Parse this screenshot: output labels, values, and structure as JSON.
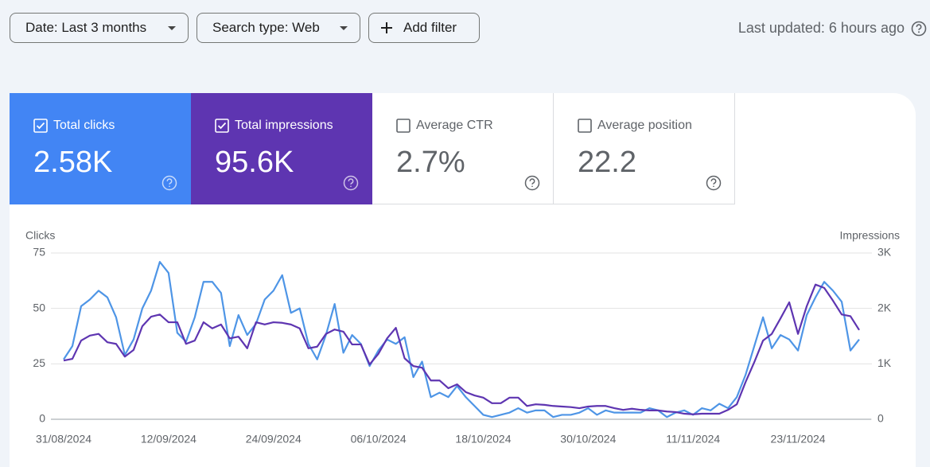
{
  "filters": [
    "Date: Last 3 months",
    "Search type: Web",
    "Add filter"
  ],
  "last_updated": "Last updated: 6 hours ago",
  "metrics": [
    {
      "label": "Total clicks",
      "value": "2.58K",
      "checked": true
    },
    {
      "label": "Total impressions",
      "value": "95.6K",
      "checked": true
    },
    {
      "label": "Average CTR",
      "value": "2.7%",
      "checked": false
    },
    {
      "label": "Average position",
      "value": "22.2",
      "checked": false
    }
  ],
  "chart_data": {
    "type": "line",
    "y_label": "Clicks",
    "y2_label": "Impressions",
    "categories": [
      "31/08/2024",
      null,
      null,
      null,
      null,
      null,
      null,
      null,
      null,
      null,
      null,
      null,
      "12/09/2024",
      null,
      null,
      null,
      null,
      null,
      null,
      null,
      null,
      null,
      null,
      null,
      "24/09/2024",
      null,
      null,
      null,
      null,
      null,
      null,
      null,
      null,
      null,
      null,
      null,
      "06/10/2024",
      null,
      null,
      null,
      null,
      null,
      null,
      null,
      null,
      null,
      null,
      null,
      "18/10/2024",
      null,
      null,
      null,
      null,
      null,
      null,
      null,
      null,
      null,
      null,
      null,
      "30/10/2024",
      null,
      null,
      null,
      null,
      null,
      null,
      null,
      null,
      null,
      null,
      null,
      "11/11/2024",
      null,
      null,
      null,
      null,
      null,
      null,
      null,
      null,
      null,
      null,
      null,
      "23/11/2024",
      null,
      null,
      null,
      null,
      null,
      null,
      null
    ],
    "series": [
      {
        "color": "#4e95e6",
        "values": [
          27,
          33,
          51,
          54,
          58,
          55,
          46,
          29,
          36,
          50,
          58,
          71,
          66,
          39,
          35,
          46,
          62,
          62,
          57,
          33,
          47,
          38,
          43,
          54,
          58,
          65,
          48,
          50,
          34,
          27,
          38,
          52,
          30,
          38,
          34,
          24,
          31,
          36,
          34,
          37,
          19,
          26,
          10,
          12,
          10,
          15,
          10,
          6,
          2,
          1,
          2,
          3,
          5,
          3,
          4,
          4,
          1,
          2,
          2,
          3,
          5,
          2,
          4,
          3,
          3,
          3,
          3,
          5,
          4,
          1,
          3,
          4,
          2,
          5,
          4,
          7,
          5,
          10,
          20,
          33,
          46,
          32,
          38,
          36,
          31,
          47,
          55,
          62,
          58,
          53,
          31,
          36
        ]
      },
      {
        "color": "#5e35b1",
        "axis": "y2",
        "values": [
          1060,
          1090,
          1420,
          1510,
          1540,
          1390,
          1360,
          1130,
          1250,
          1680,
          1850,
          1890,
          1750,
          1750,
          1360,
          1420,
          1750,
          1640,
          1710,
          1460,
          1490,
          1280,
          1750,
          1710,
          1750,
          1740,
          1710,
          1640,
          1280,
          1310,
          1540,
          1620,
          1580,
          1350,
          1350,
          990,
          1180,
          1460,
          1650,
          1100,
          960,
          930,
          700,
          700,
          560,
          630,
          490,
          430,
          390,
          290,
          290,
          390,
          390,
          240,
          270,
          260,
          240,
          230,
          220,
          200,
          230,
          240,
          240,
          200,
          170,
          190,
          170,
          160,
          160,
          140,
          130,
          100,
          90,
          100,
          100,
          100,
          170,
          270,
          670,
          1030,
          1420,
          1540,
          1820,
          2110,
          1540,
          2040,
          2430,
          2370,
          2140,
          1890,
          1860,
          1610
        ]
      }
    ],
    "ylim": [
      0,
      75
    ],
    "yticks": [
      0,
      25,
      50,
      75
    ],
    "y2lim": [
      0,
      3000
    ],
    "y2ticks": [
      0,
      {
        "value": 1000,
        "label": "1K"
      },
      {
        "value": 2000,
        "label": "2K"
      },
      {
        "value": 3000,
        "label": "3K"
      }
    ],
    "grid": true
  }
}
